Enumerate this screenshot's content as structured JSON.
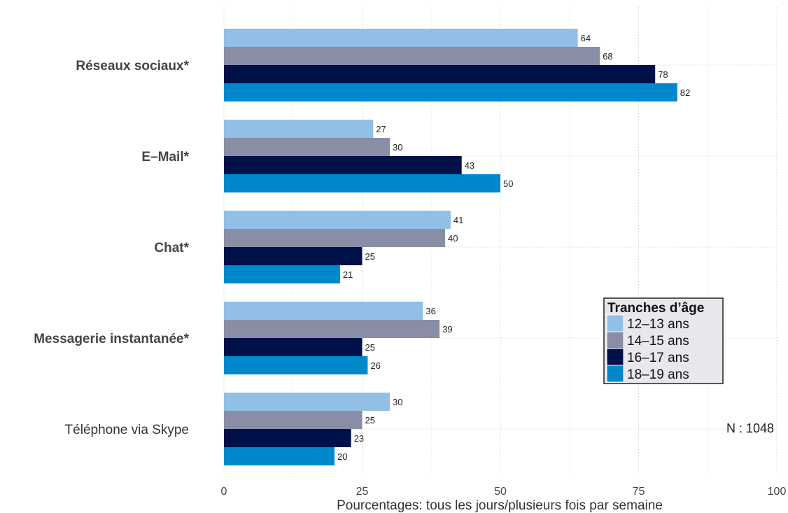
{
  "chart_data": {
    "type": "bar",
    "orientation": "horizontal",
    "categories": [
      "Réseaux sociaux*",
      "E–Mail*",
      "Chat*",
      "Messagerie instantanée*",
      "Téléphone via Skype"
    ],
    "category_bold": [
      true,
      true,
      true,
      true,
      false
    ],
    "series": [
      {
        "name": "12–13 ans",
        "color": "#92bfe6",
        "values": [
          64,
          27,
          41,
          36,
          30
        ]
      },
      {
        "name": "14–15 ans",
        "color": "#8a8da6",
        "values": [
          68,
          30,
          40,
          39,
          25
        ]
      },
      {
        "name": "16–17 ans",
        "color": "#00114a",
        "values": [
          78,
          43,
          25,
          25,
          23
        ]
      },
      {
        "name": "18–19 ans",
        "color": "#0088cc",
        "values": [
          82,
          50,
          21,
          26,
          20
        ]
      }
    ],
    "xlabel": "Pourcentages: tous les jours/plusieurs fois par semaine",
    "xlim": [
      0,
      100
    ],
    "xticks": [
      0,
      25,
      50,
      75,
      100
    ],
    "legend": {
      "title": "Tranches d’âge",
      "placement": "right"
    },
    "annotation": "N : 1048",
    "grid": true
  }
}
